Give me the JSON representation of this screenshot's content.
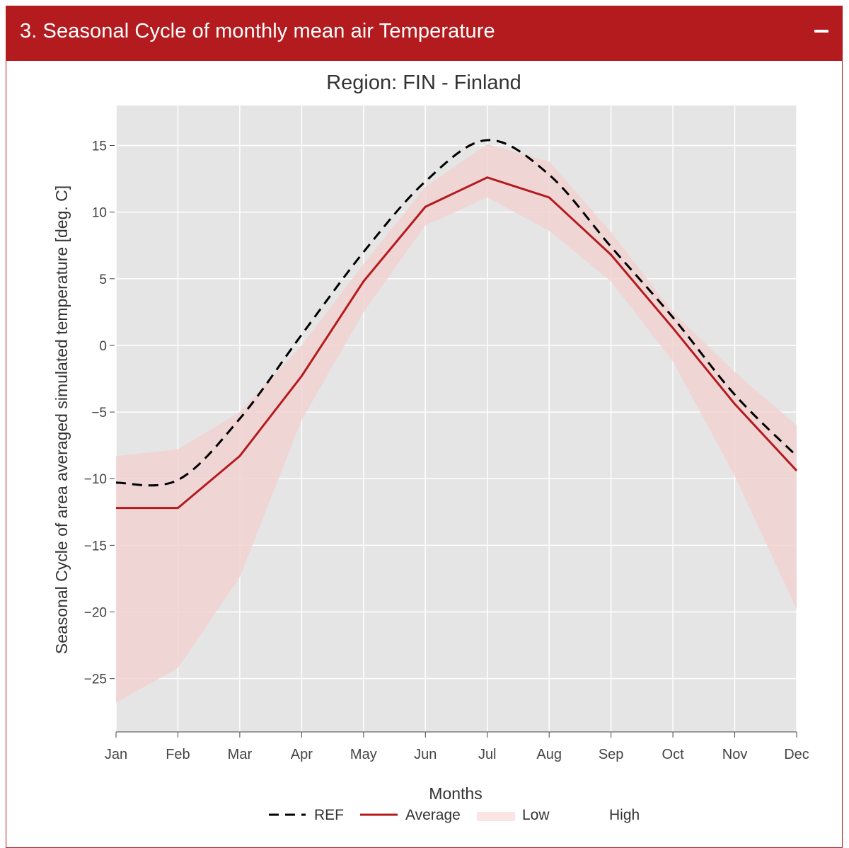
{
  "panel": {
    "title": "3. Seasonal Cycle of monthly mean air Temperature",
    "collapse_icon": "minus-icon",
    "header_color": "#b31b1e"
  },
  "chart_data": {
    "type": "line",
    "title": "Region:  FIN - Finland",
    "xlabel": "Months",
    "ylabel": "Seasonal Cycle of area averaged simulated temperature [deg. C]",
    "categories": [
      "Jan",
      "Feb",
      "Mar",
      "Apr",
      "May",
      "Jun",
      "Jul",
      "Aug",
      "Sep",
      "Oct",
      "Nov",
      "Dec"
    ],
    "ylim": [
      -29,
      18
    ],
    "yticks": [
      15,
      10,
      5,
      0,
      -5,
      -10,
      -15,
      -20,
      -25
    ],
    "ytick_labels": [
      "15",
      "10",
      "5",
      "0",
      "−5",
      "−10",
      "−15",
      "−20",
      "−25"
    ],
    "grid": true,
    "legend_position": "bottom",
    "series": [
      {
        "name": "REF",
        "style": "dashed",
        "color": "#000000",
        "values": [
          -10.3,
          -10.1,
          -5.5,
          0.8,
          7.0,
          12.3,
          15.4,
          12.8,
          7.4,
          2.1,
          -3.7,
          -8.3
        ]
      },
      {
        "name": "Average",
        "style": "solid",
        "color": "#b31b1e",
        "values": [
          -12.2,
          -12.2,
          -8.3,
          -2.3,
          4.8,
          10.4,
          12.6,
          11.1,
          6.8,
          1.3,
          -4.4,
          -9.4
        ]
      }
    ],
    "band": {
      "low_name": "Low",
      "high_name": "High",
      "color": "#f2d2d2",
      "low": [
        -26.8,
        -24.2,
        -17.4,
        -5.6,
        2.5,
        9.0,
        11.1,
        8.6,
        4.8,
        -1.2,
        -9.8,
        -19.8
      ],
      "high": [
        -8.3,
        -7.8,
        -5.0,
        0.0,
        6.1,
        11.9,
        15.1,
        13.8,
        8.5,
        2.5,
        -2.0,
        -6.0
      ]
    }
  }
}
